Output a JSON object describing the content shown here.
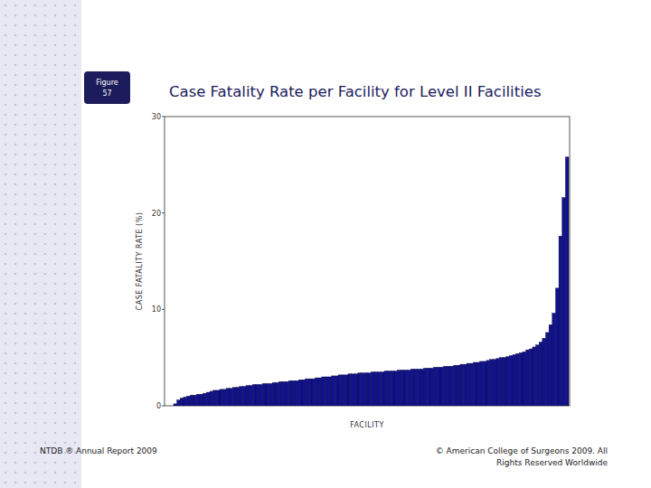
{
  "slide": {
    "figure_label": [
      "Figure",
      "57"
    ],
    "footer_left": "NTDB ® Annual Report 2009",
    "footer_right": [
      "© American College of Surgeons 2009.  All",
      "Rights Reserved Worldwide"
    ]
  },
  "chart_data": {
    "type": "bar",
    "title": "Case Fatality Rate per Facility for Level II Facilities",
    "x_label": "FACILITY",
    "y_label": "CASE FATALITY RATE (%)",
    "categories": [
      null,
      null,
      null,
      null,
      null,
      null,
      null,
      null,
      null,
      null,
      null,
      null,
      null,
      null,
      null,
      null,
      null,
      null,
      null,
      null,
      null,
      null,
      null,
      null,
      null,
      null,
      null,
      null,
      null,
      null,
      null,
      null,
      null,
      null,
      null,
      null,
      null,
      null,
      null,
      null,
      null,
      null,
      null,
      null,
      null,
      null,
      null,
      null,
      null,
      null,
      null,
      null,
      null,
      null,
      null,
      null,
      null,
      null,
      null,
      null,
      null,
      null,
      null,
      null,
      null,
      null,
      null,
      null,
      null,
      null,
      null,
      null,
      null,
      null,
      null,
      null,
      null,
      null,
      null,
      null,
      null,
      null,
      null,
      null,
      null,
      null,
      null,
      null,
      null,
      null,
      null,
      null,
      null,
      null,
      null,
      null,
      null,
      null,
      null,
      null,
      null,
      null,
      null,
      null,
      null,
      null,
      null,
      null,
      null,
      null,
      null,
      null,
      null,
      null,
      null,
      null,
      null,
      null,
      null,
      null
    ],
    "values": [
      0.2,
      0.6,
      0.8,
      0.9,
      1.0,
      1.1,
      1.1,
      1.2,
      1.2,
      1.3,
      1.4,
      1.5,
      1.6,
      1.6,
      1.7,
      1.7,
      1.8,
      1.8,
      1.9,
      1.9,
      2.0,
      2.0,
      2.1,
      2.1,
      2.2,
      2.2,
      2.2,
      2.3,
      2.3,
      2.3,
      2.4,
      2.4,
      2.5,
      2.5,
      2.5,
      2.6,
      2.6,
      2.6,
      2.7,
      2.7,
      2.8,
      2.8,
      2.8,
      2.9,
      2.9,
      3.0,
      3.0,
      3.0,
      3.1,
      3.1,
      3.2,
      3.2,
      3.2,
      3.3,
      3.3,
      3.3,
      3.4,
      3.4,
      3.4,
      3.4,
      3.5,
      3.5,
      3.5,
      3.5,
      3.6,
      3.6,
      3.6,
      3.6,
      3.7,
      3.7,
      3.7,
      3.7,
      3.8,
      3.8,
      3.8,
      3.8,
      3.9,
      3.9,
      3.9,
      4.0,
      4.0,
      4.0,
      4.1,
      4.1,
      4.1,
      4.2,
      4.2,
      4.3,
      4.3,
      4.4,
      4.4,
      4.5,
      4.5,
      4.6,
      4.6,
      4.7,
      4.8,
      4.8,
      4.9,
      5.0,
      5.0,
      5.1,
      5.2,
      5.3,
      5.4,
      5.5,
      5.6,
      5.8,
      5.9,
      6.1,
      6.3,
      6.6,
      7.0,
      7.6,
      8.4,
      9.6,
      12.2,
      17.6,
      21.6,
      25.8
    ],
    "color": "#12128c",
    "ylim": [
      0,
      30
    ],
    "yticks": [
      0,
      10,
      20,
      30
    ],
    "tick_labels": "y",
    "grid": false
  }
}
